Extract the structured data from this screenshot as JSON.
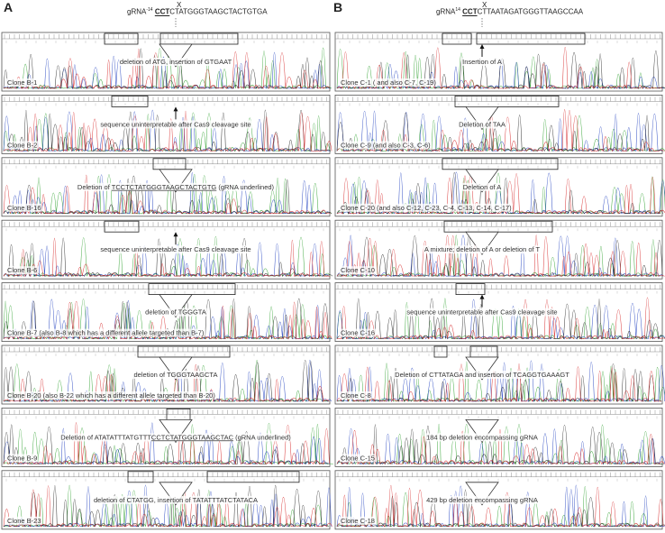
{
  "panels": [
    {
      "letter": "A",
      "grna_label": "gRNA",
      "grna_sup": "-14",
      "grna_pam": "CCT",
      "grna_seq": "CTATGGGTAAGCTACTGTGA",
      "cut_marker": "X",
      "traces": [
        {
          "clone": "Clone B-1",
          "annotation": "deletion of ATG, insertion of GTGAAT",
          "marker": "triangle"
        },
        {
          "clone": "Clone B-2",
          "annotation": "sequence uninterpretable after Cas9 cleavage site",
          "marker": "arrow"
        },
        {
          "clone": "Clone B-16",
          "annotation_prefix": "Deletion of ",
          "annotation_underlined": "TCCTCTATGGGTAAGCTACTGTG",
          "annotation_suffix": " (gRNA underlined)",
          "marker": "triangle"
        },
        {
          "clone": "Clone B-6",
          "annotation": "sequence uninterpretable after Cas9 cleavage site",
          "marker": "arrow"
        },
        {
          "clone": "Clone B-7 (also B-8 which has a different allele targeted than B-7)",
          "annotation": "deletion of TGGGTA",
          "marker": "triangle"
        },
        {
          "clone": "Clone B-20 (also B-22 which has a different allele targeted than B-20)",
          "annotation": "deletion of TGGGTAAGCTA",
          "marker": "triangle"
        },
        {
          "clone": "Clone B-9",
          "annotation_prefix": "Deletion of ATATATTTATGTTT",
          "annotation_underlined": "CCTCTATGGGTAAGCTAC",
          "annotation_suffix": " (gRNA underlined)",
          "marker": "triangle"
        },
        {
          "clone": "Clone B-23",
          "annotation": "deletion of CTATGG, insertion of TATATTTATCTATACA",
          "marker": "triangle"
        }
      ]
    },
    {
      "letter": "B",
      "grna_label": "gRNA",
      "grna_sup": "14",
      "grna_pam": "CCT",
      "grna_seq": "CTTAATAGATGGGTTAAGCCAA",
      "cut_marker": "X",
      "traces": [
        {
          "clone": "Clone C-1 ( and also C-7, C-19)",
          "annotation": "Insertion of A",
          "marker": "arrow"
        },
        {
          "clone": "Clone C-9 (and also C-3, C-6)",
          "annotation": "Deletion of TAA",
          "marker": "triangle"
        },
        {
          "clone": "Clone C-20 (and also C-12, C-23, C-4, C-13, C-14, C-17)",
          "annotation": "Deletion of A",
          "marker": "triangle"
        },
        {
          "clone": "Clone C-10",
          "annotation": "A mixture; deletion of A or deletion of T",
          "marker": "triangle"
        },
        {
          "clone": "Clone C-16",
          "annotation": "sequence uninterpretable after Cas9 cleavage site",
          "marker": "arrow"
        },
        {
          "clone": "Clone C-8",
          "annotation": "Deletion of CTTATAGA and insertion of TCAGGTGAAAGT",
          "marker": "triangle"
        },
        {
          "clone": "Clone C-15",
          "annotation": "184 bp deletion encompassing gRNA",
          "marker": "triangle"
        },
        {
          "clone": "Clone C-18",
          "annotation": "429 bp deletion encompassing gRNA",
          "marker": "triangle"
        }
      ]
    }
  ],
  "colors": {
    "trace_a": "#2ca02c",
    "trace_c": "#1f3fbf",
    "trace_g": "#222222",
    "trace_t": "#d62728",
    "frame": "#555555"
  }
}
